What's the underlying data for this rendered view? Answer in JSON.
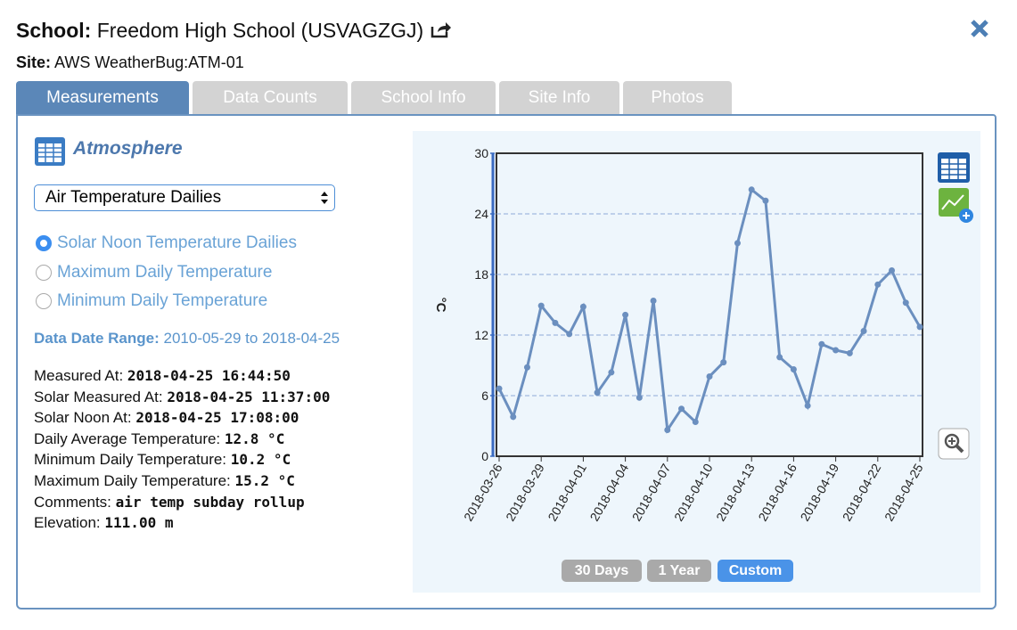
{
  "header": {
    "school_label": "School:",
    "school_name": "Freedom High School (USVAGZGJ)",
    "site_label": "Site:",
    "site_name": "AWS WeatherBug:ATM-01"
  },
  "tabs": [
    "Measurements",
    "Data Counts",
    "School Info",
    "Site Info",
    "Photos"
  ],
  "panel": {
    "section_title": "Atmosphere",
    "select_value": "Air Temperature Dailies",
    "radios": [
      "Solar Noon Temperature Dailies",
      "Maximum Daily Temperature",
      "Minimum Daily Temperature"
    ],
    "date_range_label": "Data Date Range:",
    "date_range_value": "2010-05-29 to 2018-04-25",
    "info": [
      {
        "label": "Measured At:",
        "value": "2018-04-25 16:44:50"
      },
      {
        "label": "Solar Measured At:",
        "value": "2018-04-25 11:37:00"
      },
      {
        "label": "Solar Noon At:",
        "value": "2018-04-25 17:08:00"
      },
      {
        "label": "Daily Average Temperature:",
        "value": "12.8 °C"
      },
      {
        "label": "Minimum Daily Temperature:",
        "value": "10.2 °C"
      },
      {
        "label": "Maximum Daily Temperature:",
        "value": "15.2 °C"
      },
      {
        "label": "Comments:",
        "value": "air temp subday rollup"
      },
      {
        "label": "Elevation:",
        "value": "111.00 m"
      }
    ]
  },
  "range_buttons": [
    "30 Days",
    "1 Year",
    "Custom"
  ],
  "chart_data": {
    "type": "line",
    "y_label": "°C",
    "categories": [
      "2018-03-26",
      null,
      null,
      "2018-03-29",
      null,
      null,
      "2018-04-01",
      null,
      null,
      "2018-04-04",
      null,
      null,
      "2018-04-07",
      null,
      null,
      "2018-04-10",
      null,
      null,
      "2018-04-13",
      null,
      null,
      "2018-04-16",
      null,
      null,
      "2018-04-19",
      null,
      null,
      "2018-04-22",
      null,
      null,
      "2018-04-25"
    ],
    "values": [
      6.7,
      3.9,
      8.8,
      14.9,
      13.2,
      12.1,
      14.8,
      6.3,
      8.3,
      14.0,
      5.8,
      15.4,
      2.6,
      4.7,
      3.4,
      7.9,
      9.3,
      21.1,
      26.4,
      25.3,
      9.8,
      8.6,
      5.0,
      11.1,
      10.5,
      10.2,
      12.4,
      17.0,
      18.4,
      15.2,
      12.8
    ],
    "color": "#6b8fbf",
    "ylim": [
      0,
      30
    ],
    "yticks": [
      0,
      6,
      12,
      18,
      24,
      30
    ],
    "grid": true
  }
}
